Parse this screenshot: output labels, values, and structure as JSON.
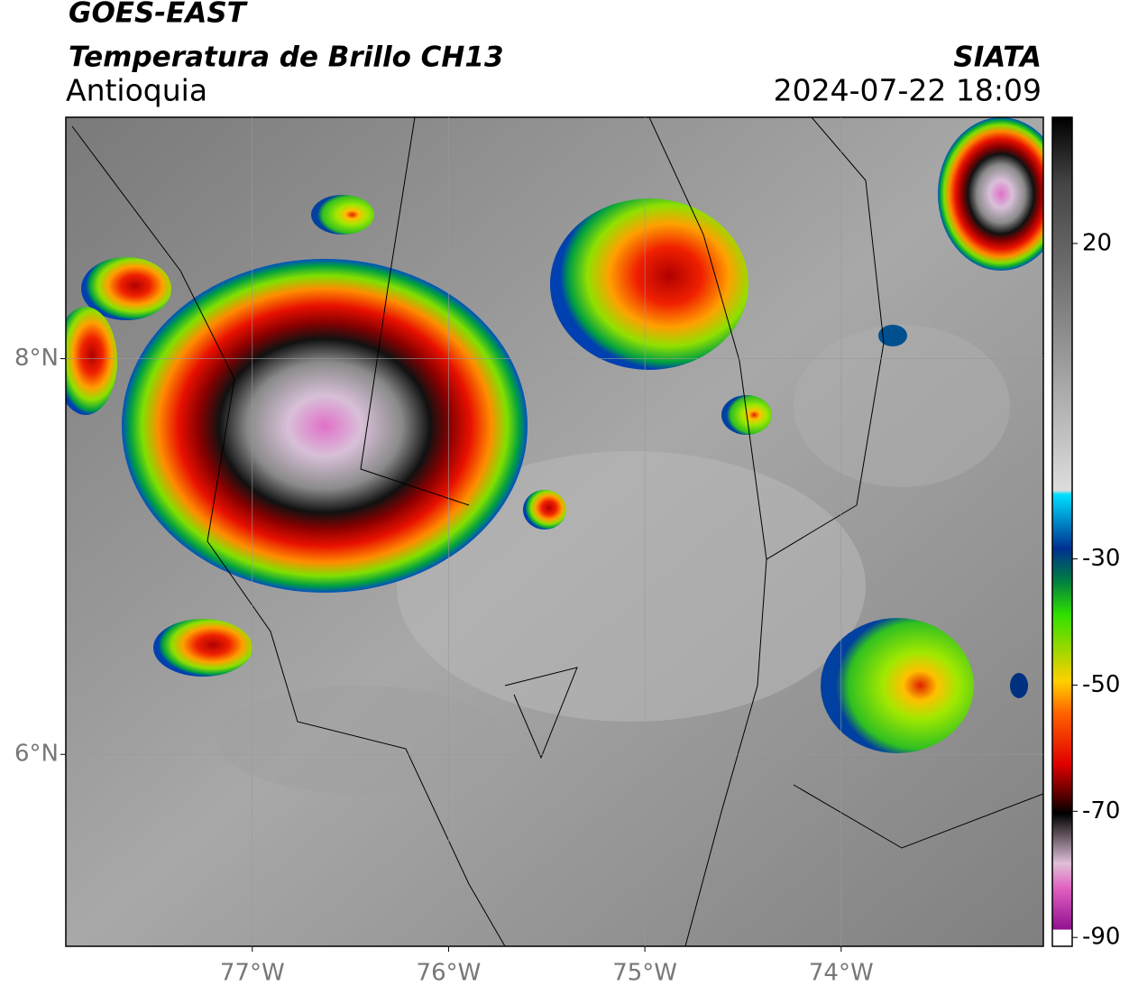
{
  "header": {
    "title": "GOES-EAST",
    "subtitle": "Temperatura de Brillo CH13",
    "region": "Antioquia",
    "source": "SIATA",
    "datetime": "2024-07-22 18:09"
  },
  "map": {
    "xlim": [
      -77.95,
      -72.97
    ],
    "ylim": [
      5.03,
      9.22
    ],
    "xticks": [
      {
        "value": -77,
        "label": "77°W"
      },
      {
        "value": -76,
        "label": "76°W"
      },
      {
        "value": -75,
        "label": "75°W"
      },
      {
        "value": -74,
        "label": "74°W"
      }
    ],
    "yticks": [
      {
        "value": 8,
        "label": "8°N"
      },
      {
        "value": 6,
        "label": "6°N"
      }
    ]
  },
  "colorbar": {
    "lim": [
      -91.4,
      40
    ],
    "ticks": [
      20,
      -30,
      -50,
      -70,
      -90
    ]
  }
}
